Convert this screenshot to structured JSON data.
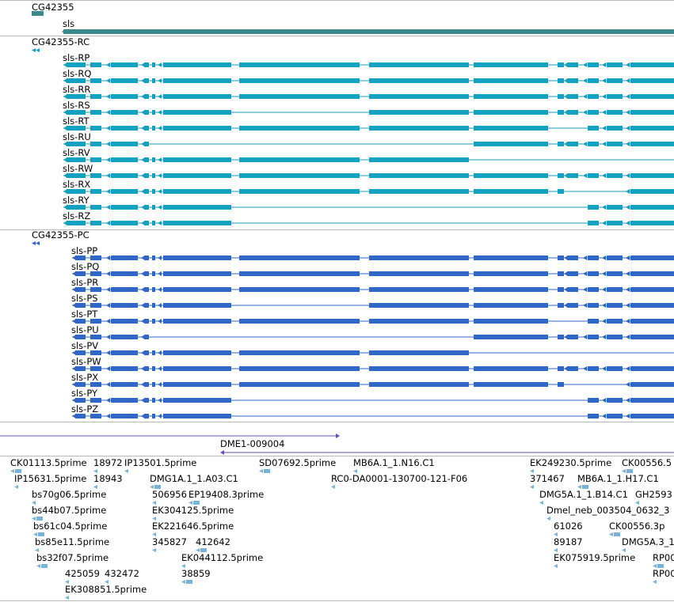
{
  "colors": {
    "gene": "#3a8a8c",
    "transcript_rc": "#13a1bf",
    "transcript_pc": "#2f66c8",
    "match": "#6a4fb0",
    "est": "#7ab3d8",
    "divider": "#b8b8b8"
  },
  "gene_track": {
    "gene_label": "CG42355",
    "name_label": "sls"
  },
  "rc_group": {
    "group_label": "CG42355-RC",
    "transcripts": [
      "sls-RP",
      "sls-RQ",
      "sls-RR",
      "sls-RS",
      "sls-RT",
      "sls-RU",
      "sls-RV",
      "sls-RW",
      "sls-RX",
      "sls-RY",
      "sls-RZ"
    ]
  },
  "pc_group": {
    "group_label": "CG42355-PC",
    "proteins": [
      "sls-PP",
      "sls-PQ",
      "sls-PR",
      "sls-PS",
      "sls-PT",
      "sls-PU",
      "sls-PV",
      "sls-PW",
      "sls-PX",
      "sls-PY",
      "sls-PZ"
    ]
  },
  "match_track": {
    "feature_label": "DME1-009004"
  },
  "est_track": {
    "labels": [
      "CK01113.5prime",
      "18972",
      "IP13501.5prime",
      "SD07692.5prime",
      "MB6A.1_1.N16.C1",
      "EK249230.5prime",
      "CK00556.5",
      "IP15631.5prime",
      "18943",
      "DMG1A.1_1.A03.C1",
      "RC0-DA0001-130700-121-F06",
      "371467",
      "MB6A.1_1.H17.C1",
      "bs70g06.5prime",
      "506956",
      "EP19408.3prime",
      "DMG5A.1_1.B14.C1",
      "GH2593",
      "bs44b07.5prime",
      "EK304125.5prime",
      "Dmel_neb_003504_0632_3",
      "bs61c04.5prime",
      "EK221646.5prime",
      "61026",
      "CK00556.3p",
      "bs85e11.5prime",
      "345827",
      "412642",
      "89187",
      "DMG5A.3_1",
      "bs32f07.5prime",
      "EK044112.5prime",
      "EK075919.5prime",
      "RP00",
      "425059",
      "432472",
      "38859",
      "RP00",
      "EK308851.5prime"
    ]
  }
}
